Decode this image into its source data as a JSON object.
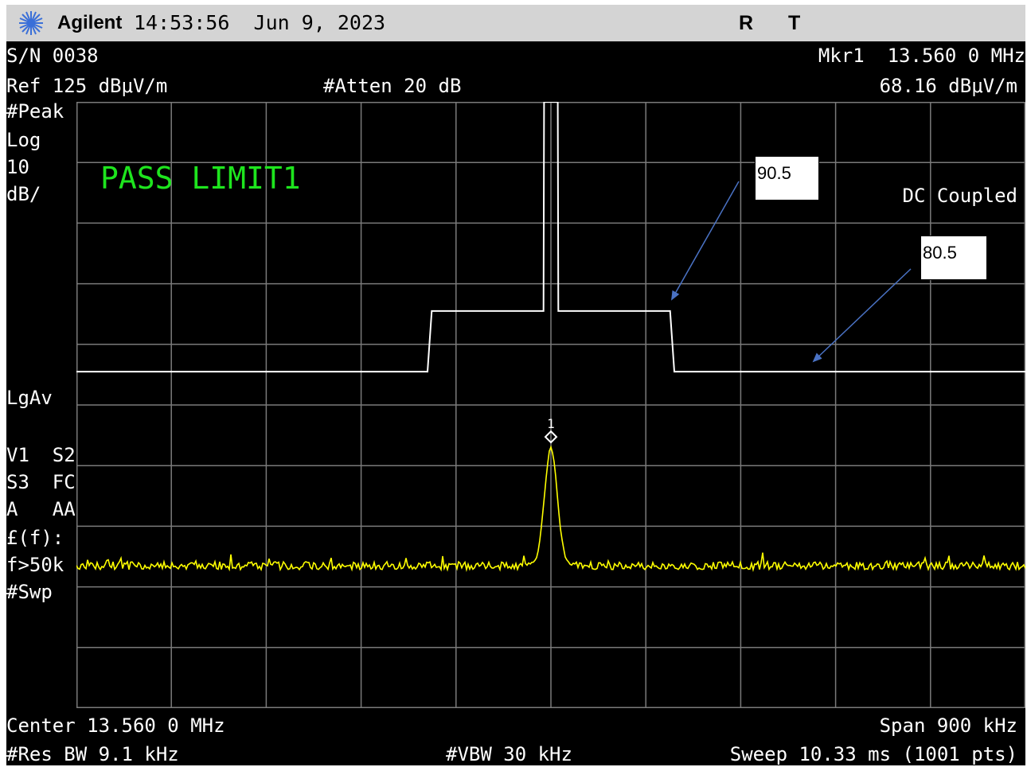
{
  "titlebar": {
    "brand": "Agilent",
    "datetime": "14:53:56  Jun 9, 2023",
    "status_r": "R",
    "status_t": "T"
  },
  "header": {
    "serial": "S/N 0038",
    "marker_label": "Mkr1  13.560 0 MHz",
    "ref_level": "Ref 125 dBμV/m",
    "atten": "#Atten 20 dB",
    "marker_value": "68.16 dBμV/m"
  },
  "left_panel": {
    "detector": "#Peak",
    "scale_type": "Log",
    "scale_value": "10",
    "scale_unit": "dB/",
    "avg_type": "LgAv",
    "v1s2": "V1  S2",
    "s3fc": "S3  FC",
    "aaa": "A   AA",
    "ftun": "£(f):",
    "freq_cond": "f>50k",
    "sweep": "#Swp"
  },
  "display": {
    "pass_label": "PASS LIMIT1",
    "coupling": "DC Coupled",
    "marker_number": "1",
    "limit_color": "#ffffff",
    "trace_color": "#ffff00",
    "grid_color": "#7a7a7a",
    "pass_color": "#1ee51e"
  },
  "callouts": {
    "upper": "90.5",
    "lower": "80.5"
  },
  "footer": {
    "center": "Center 13.560 0 MHz",
    "span": "Span 900 kHz",
    "res_bw": "#Res BW 9.1 kHz",
    "vbw": "#VBW 30 kHz",
    "sweep_time": "Sweep 10.33 ms (1001 pts)"
  },
  "chart_data": {
    "type": "line",
    "x_start_mhz": 13.11,
    "x_end_mhz": 14.01,
    "center_mhz": 13.56,
    "ref_level_dbuv_m": 125,
    "db_per_div": 10,
    "ylim": [
      25,
      125
    ],
    "grid": true,
    "limit_line": {
      "x": [
        13.11,
        13.443,
        13.447,
        13.553,
        13.5535,
        13.5665,
        13.567,
        13.673,
        13.677,
        14.01
      ],
      "y": [
        80.5,
        80.5,
        90.5,
        90.5,
        125,
        125,
        90.5,
        90.5,
        80.5,
        80.5
      ]
    },
    "marker": {
      "freq_mhz": 13.56,
      "level_dbuv_m": 68.16
    }
  }
}
